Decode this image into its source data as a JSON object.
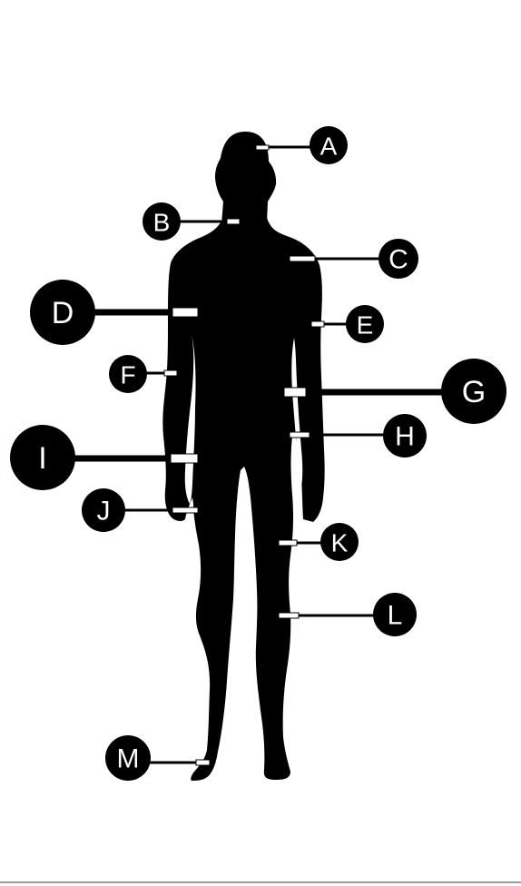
{
  "colors": {
    "figure": "#000000",
    "leader": "#000000",
    "leader_stub": "#ffffff",
    "badge": "#000000",
    "badge_text": "#ffffff",
    "background": "#ffffff"
  },
  "labels": {
    "A": "A",
    "B": "B",
    "C": "C",
    "D": "D",
    "E": "E",
    "F": "F",
    "G": "G",
    "H": "H",
    "I": "I",
    "J": "J",
    "K": "K",
    "L": "L",
    "M": "M"
  }
}
